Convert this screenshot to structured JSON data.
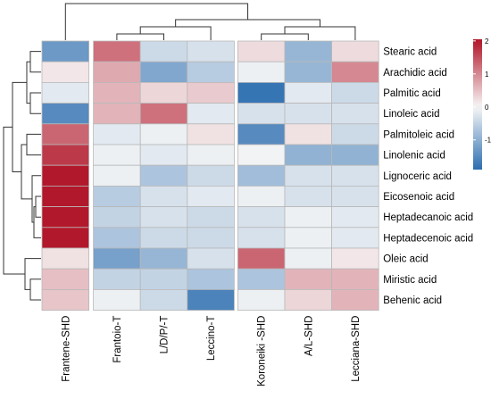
{
  "chart_data": {
    "type": "heatmap",
    "title": "",
    "rows": [
      "Stearic acid",
      "Arachidic acid",
      "Palmitic acid",
      "Linoleic acid",
      "Palmitoleic acid",
      "Linolenic acid",
      "Lignoceric acid",
      "Eicosenoic acid",
      "Heptadecanoic acid",
      "Heptadecenoic acid",
      "Oleic acid",
      "Miristic acid",
      "Behenic acid"
    ],
    "columns": [
      "Frantene-SHD",
      "Frantoio-T",
      "L/D/P/-T",
      "Leccino-T",
      "Koroneiki -SHD",
      "A/L-SHD",
      "Lecciana-SHD"
    ],
    "values": [
      [
        -1.3,
        1.2,
        -0.4,
        -0.3,
        0.25,
        -0.9,
        0.25
      ],
      [
        0.15,
        0.7,
        -1.1,
        -0.6,
        -0.1,
        -0.9,
        1.0
      ],
      [
        -0.2,
        0.6,
        0.3,
        0.4,
        -1.8,
        -0.2,
        -0.4
      ],
      [
        -1.5,
        0.6,
        1.2,
        -0.2,
        -0.3,
        -0.3,
        -0.3
      ],
      [
        1.3,
        -0.2,
        -0.1,
        0.2,
        -1.5,
        0.2,
        -0.4
      ],
      [
        1.7,
        -0.1,
        -0.2,
        -0.1,
        -0.05,
        -0.95,
        -0.95
      ],
      [
        2.0,
        -0.1,
        -0.7,
        -0.4,
        -0.8,
        -0.3,
        -0.3
      ],
      [
        2.0,
        -0.6,
        -0.3,
        -0.2,
        -0.1,
        -0.3,
        -0.3
      ],
      [
        2.0,
        -0.5,
        -0.3,
        -0.4,
        -0.3,
        -0.1,
        -0.2
      ],
      [
        2.0,
        -0.7,
        -0.4,
        -0.4,
        -0.3,
        -0.1,
        -0.2
      ],
      [
        0.2,
        -1.2,
        -0.9,
        -0.3,
        1.3,
        -0.1,
        0.15
      ],
      [
        0.5,
        -0.5,
        -0.5,
        -0.7,
        -0.7,
        0.6,
        0.6
      ],
      [
        0.45,
        -0.1,
        -0.4,
        -1.6,
        -0.1,
        0.3,
        0.6
      ]
    ],
    "legend": {
      "ticks": [
        2,
        1,
        0,
        -1
      ]
    },
    "xlabel": "",
    "ylabel": "",
    "colors": {
      "low": "#2166ac",
      "mid": "#f7f7f7",
      "high": "#b2182b"
    }
  }
}
